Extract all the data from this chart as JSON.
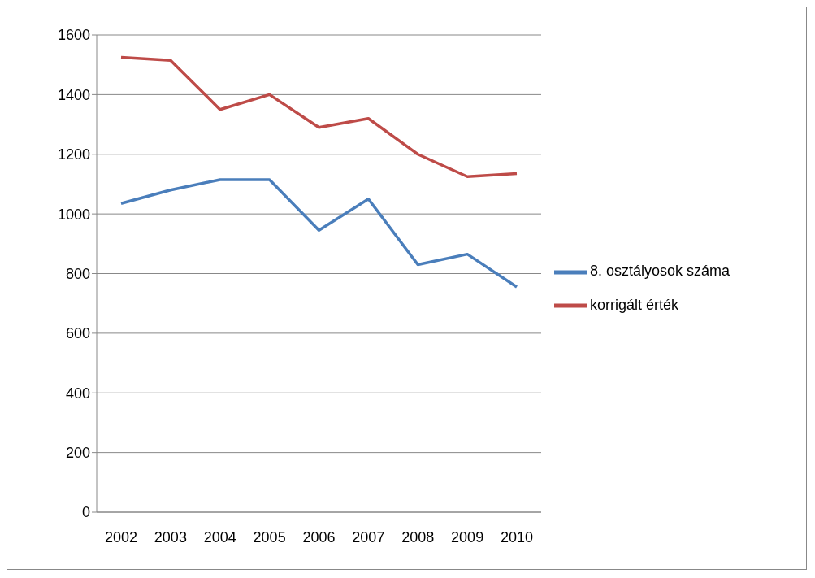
{
  "chart_data": {
    "type": "line",
    "categories": [
      "2002",
      "2003",
      "2004",
      "2005",
      "2006",
      "2007",
      "2008",
      "2009",
      "2010"
    ],
    "series": [
      {
        "name": "8. osztályosok száma",
        "color": "#4a7ebb",
        "values": [
          1035,
          1080,
          1115,
          1115,
          945,
          1050,
          830,
          865,
          755
        ]
      },
      {
        "name": "korrigált érték",
        "color": "#be4b48",
        "values": [
          1525,
          1515,
          1350,
          1400,
          1290,
          1320,
          1200,
          1125,
          1135
        ]
      }
    ],
    "ylim": [
      0,
      1600
    ],
    "yticks": [
      0,
      200,
      400,
      600,
      800,
      1000,
      1200,
      1400,
      1600
    ],
    "grid": "y",
    "legend": "right",
    "marker": "none",
    "line_style": "solid"
  }
}
